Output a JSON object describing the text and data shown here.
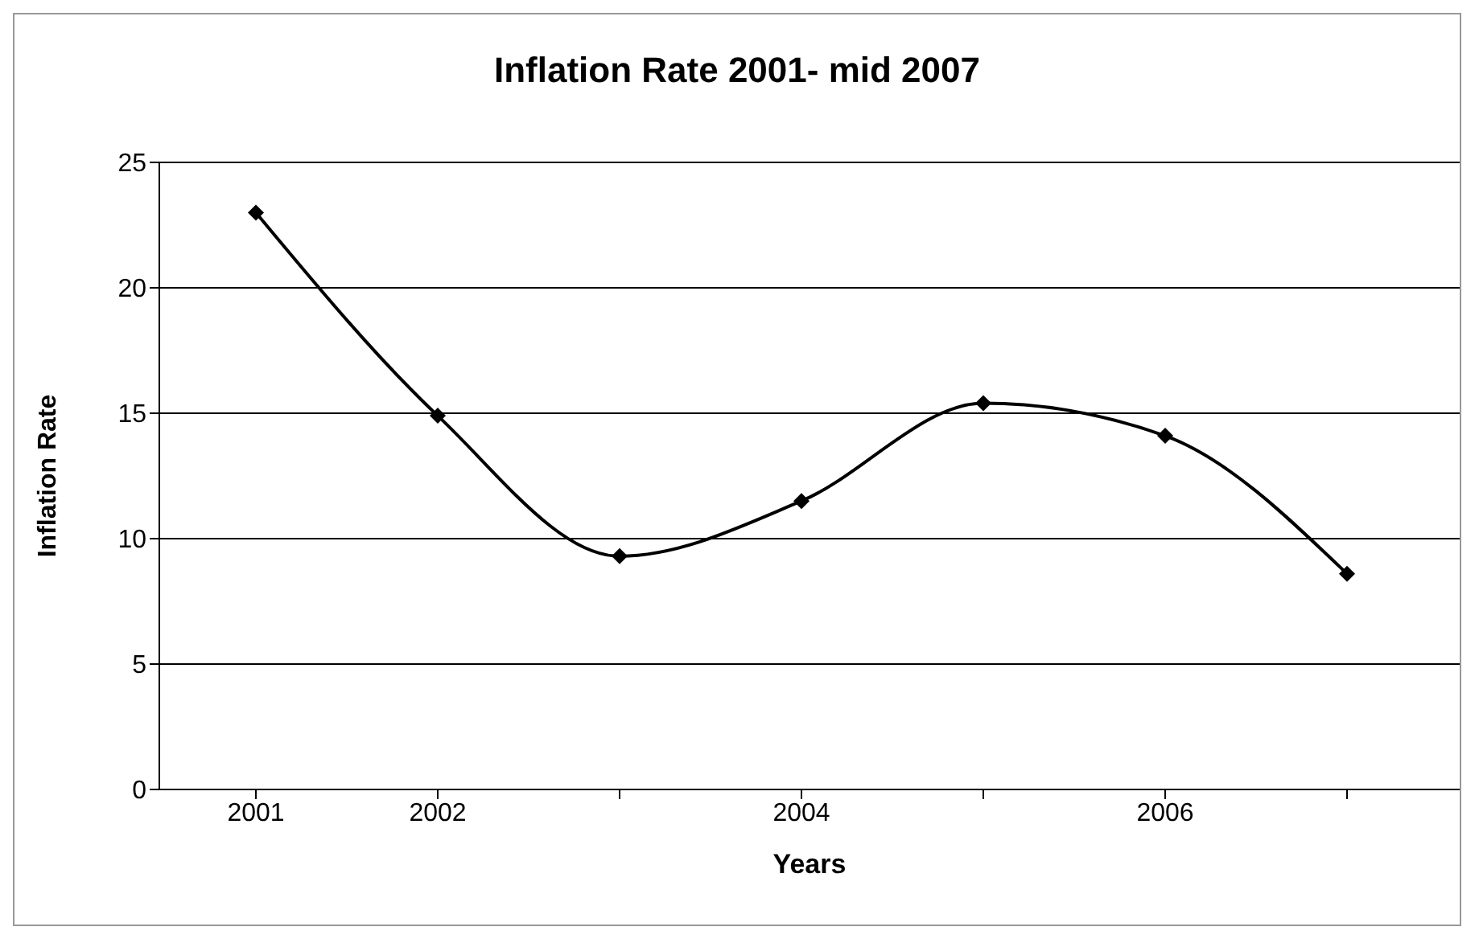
{
  "chart_data": {
    "type": "line",
    "title": "Inflation Rate 2001- mid 2007",
    "xlabel": "Years",
    "ylabel": "Inflation Rate",
    "categories": [
      "2001",
      "2002",
      null,
      "2004",
      null,
      "2006",
      null
    ],
    "series": [
      {
        "color": "#000000",
        "values": [
          23.0,
          14.9,
          9.3,
          11.5,
          15.4,
          14.1,
          8.6
        ]
      }
    ],
    "ylim": [
      0,
      25
    ],
    "yticks": [
      0,
      5,
      10,
      15,
      20,
      25
    ],
    "grid": "y",
    "marker": "diamond",
    "line_style": "solid"
  }
}
